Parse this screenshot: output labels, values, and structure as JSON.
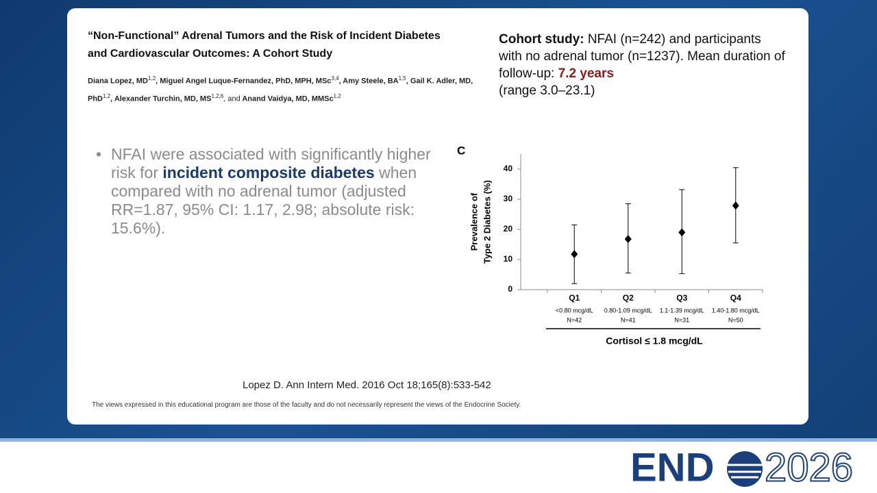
{
  "paper": {
    "title": "“Non-Functional” Adrenal Tumors and the Risk of Incident Diabetes and Cardiovascular Outcomes: A Cohort Study",
    "authors": [
      {
        "name": "Diana Lopez, MD",
        "sup": "1,2",
        "after": ","
      },
      {
        "name": "Miguel Angel Luque-Fernandez, PhD, MPH, MSc",
        "sup": "3,4",
        "after": ","
      },
      {
        "name": "Amy Steele, BA",
        "sup": "1,5",
        "after": ","
      },
      {
        "name": "Gail K. Adler, MD, PhD",
        "sup": "1,2",
        "after": ","
      },
      {
        "name": "Alexander Turchin, MD, MS",
        "sup": "1,2,6",
        "after": ", and"
      },
      {
        "name": "Anand Vaidya, MD, MMSc",
        "sup": "1,2"
      }
    ]
  },
  "cohort": {
    "label": "Cohort study:",
    "text": "NFAI (n=242) and participants with no adrenal tumor (n=1237). Mean duration of follow-up:",
    "highlight": "7.2 years",
    "tail": "(range 3.0–23.1)"
  },
  "bullet": {
    "before": "NFAI were associated with significantly higher risk for",
    "bold": "incident composite diabetes",
    "after": "when compared with no adrenal tumor (adjusted RR=1.87, 95% CI: 1.17, 2.98; absolute risk: 15.6%)."
  },
  "chart_data": {
    "type": "errorbar",
    "panel": "C",
    "ylabel": [
      "Prevalence of",
      "Type 2 Diabetes (%)"
    ],
    "xlabel": "Cortisol ≤ 1.8 mcg/dL",
    "categories": [
      "Q1",
      "Q2",
      "Q3",
      "Q4"
    ],
    "category_ranges": [
      "<0.80 mcg/dL",
      "0.80-1.09 mcg/dL",
      "1.1-1.39 mcg/dL",
      "1.40-1.80 mcg/dL"
    ],
    "category_n": [
      "N=42",
      "N=41",
      "N=31",
      "N=50"
    ],
    "values": [
      11.8,
      16.8,
      19.0,
      27.9
    ],
    "lower": [
      2.0,
      5.5,
      5.3,
      15.5
    ],
    "upper": [
      21.5,
      28.5,
      33.2,
      40.5
    ],
    "color": "#000000",
    "ylim": [
      0,
      45
    ],
    "yticks": [
      0,
      10,
      20,
      30,
      40
    ],
    "grid": false
  },
  "citation": "Lopez D. Ann Intern Med. 2016 Oct 18;165(8):533-542",
  "disclaimer": "The views expressed in this educational program are those of the faculty and do not necessarily represent the views of the Endocrine Society.",
  "logo": {
    "left": "END",
    "right": "2026"
  }
}
